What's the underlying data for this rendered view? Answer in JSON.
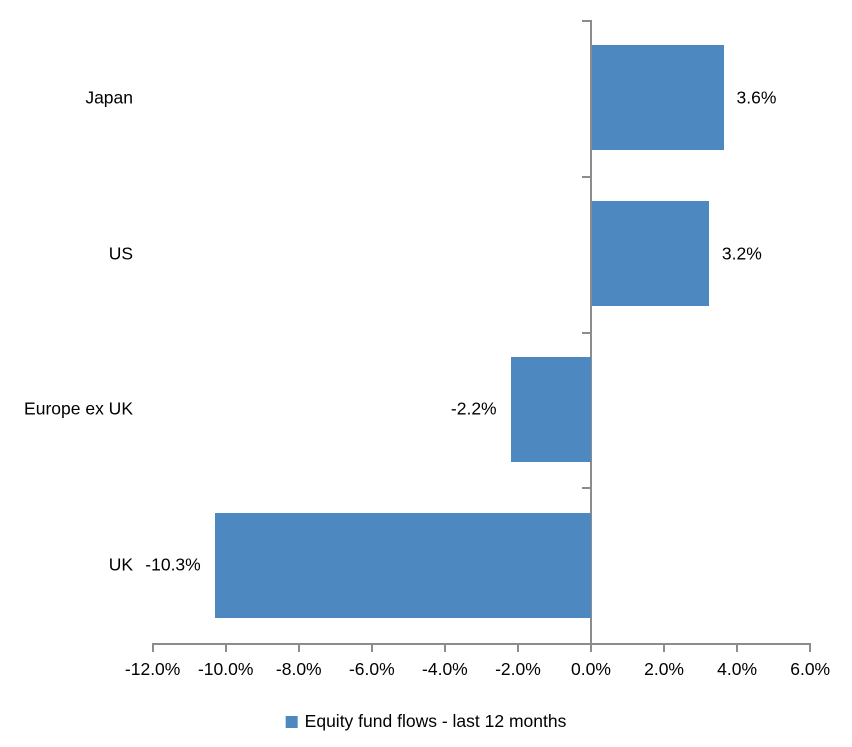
{
  "chart_data": {
    "type": "bar",
    "orientation": "horizontal",
    "title": "",
    "categories": [
      "Japan",
      "US",
      "Europe ex UK",
      "UK"
    ],
    "values": [
      3.6,
      3.2,
      -2.2,
      -10.3
    ],
    "data_labels": [
      "3.6%",
      "3.2%",
      "-2.2%",
      "-10.3%"
    ],
    "x_tick_labels": [
      "-12.0%",
      "-10.0%",
      "-8.0%",
      "-6.0%",
      "-4.0%",
      "-2.0%",
      "0.0%",
      "2.0%",
      "4.0%",
      "6.0%"
    ],
    "x_tick_values": [
      -12,
      -10,
      -8,
      -6,
      -4,
      -2,
      0,
      2,
      4,
      6
    ],
    "xlim": [
      -12,
      6
    ],
    "grid": false,
    "legend_position": "bottom",
    "series": [
      {
        "name": "Equity fund flows - last 12 months",
        "values": [
          3.6,
          3.2,
          -2.2,
          -10.3
        ]
      }
    ],
    "bar_color": "#4E88C0",
    "axis_color": "#8C8C8C",
    "text_color": "#000000"
  },
  "legend": {
    "label": "Equity fund flows - last 12 months"
  }
}
